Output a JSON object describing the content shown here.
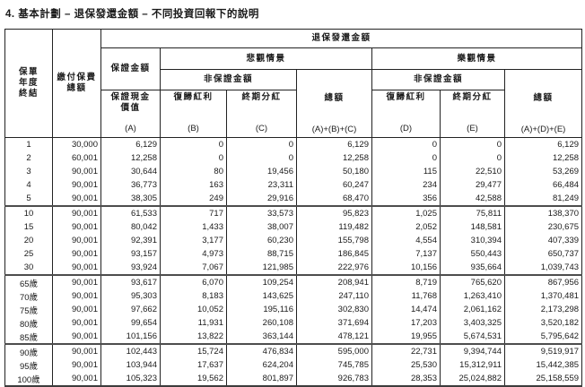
{
  "title": "4. 基本計劃 – 退保發還金額 – 不同投資回報下的說明",
  "table": {
    "header": {
      "policy_year": "保單\n年度\n終結",
      "premium_total": "繳付保費\n總額",
      "surrender_amount": "退保發還金額",
      "guaranteed_amount": "保證金額",
      "pessimistic": "悲觀情景",
      "optimistic": "樂觀情景",
      "non_guaranteed": "非保證金額",
      "guaranteed_cash_value": "保證現金\n價值",
      "reversionary_bonus": "復歸紅利",
      "terminal_dividend": "終期分紅",
      "total": "總額",
      "code_a": "(A)",
      "code_b": "(B)",
      "code_c": "(C)",
      "code_abc": "(A)+(B)+(C)",
      "code_d": "(D)",
      "code_e": "(E)",
      "code_ade": "(A)+(D)+(E)"
    },
    "groups": [
      [
        [
          "1",
          "30,000",
          "6,129",
          "0",
          "0",
          "6,129",
          "0",
          "0",
          "6,129"
        ],
        [
          "2",
          "60,001",
          "12,258",
          "0",
          "0",
          "12,258",
          "0",
          "0",
          "12,258"
        ],
        [
          "3",
          "90,001",
          "30,644",
          "80",
          "19,456",
          "50,180",
          "115",
          "22,510",
          "53,269"
        ],
        [
          "4",
          "90,001",
          "36,773",
          "163",
          "23,311",
          "60,247",
          "234",
          "29,477",
          "66,484"
        ],
        [
          "5",
          "90,001",
          "38,305",
          "249",
          "29,916",
          "68,470",
          "356",
          "42,588",
          "81,249"
        ]
      ],
      [
        [
          "10",
          "90,001",
          "61,533",
          "717",
          "33,573",
          "95,823",
          "1,025",
          "75,811",
          "138,370"
        ],
        [
          "15",
          "90,001",
          "80,042",
          "1,433",
          "38,007",
          "119,482",
          "2,052",
          "148,581",
          "230,675"
        ],
        [
          "20",
          "90,001",
          "92,391",
          "3,177",
          "60,230",
          "155,798",
          "4,554",
          "310,394",
          "407,339"
        ],
        [
          "25",
          "90,001",
          "93,157",
          "4,973",
          "88,715",
          "186,845",
          "7,137",
          "550,443",
          "650,737"
        ],
        [
          "30",
          "90,001",
          "93,924",
          "7,067",
          "121,985",
          "222,976",
          "10,156",
          "935,664",
          "1,039,743"
        ]
      ],
      [
        [
          "65歲",
          "90,001",
          "93,617",
          "6,070",
          "109,254",
          "208,941",
          "8,719",
          "765,620",
          "867,956"
        ],
        [
          "70歲",
          "90,001",
          "95,303",
          "8,183",
          "143,625",
          "247,110",
          "11,768",
          "1,263,410",
          "1,370,481"
        ],
        [
          "75歲",
          "90,001",
          "97,662",
          "10,052",
          "195,116",
          "302,830",
          "14,474",
          "2,061,162",
          "2,173,298"
        ],
        [
          "80歲",
          "90,001",
          "99,654",
          "11,931",
          "260,108",
          "371,694",
          "17,203",
          "3,403,325",
          "3,520,182"
        ],
        [
          "85歲",
          "90,001",
          "101,156",
          "13,822",
          "363,144",
          "478,121",
          "19,955",
          "5,674,531",
          "5,795,642"
        ]
      ],
      [
        [
          "90歲",
          "90,001",
          "102,443",
          "15,724",
          "476,834",
          "595,000",
          "22,731",
          "9,394,744",
          "9,519,917"
        ],
        [
          "95歲",
          "90,001",
          "103,944",
          "17,637",
          "624,204",
          "745,785",
          "25,530",
          "15,312,911",
          "15,442,385"
        ],
        [
          "100歲",
          "90,001",
          "105,323",
          "19,562",
          "801,897",
          "926,783",
          "28,353",
          "25,024,882",
          "25,158,559"
        ]
      ]
    ]
  }
}
